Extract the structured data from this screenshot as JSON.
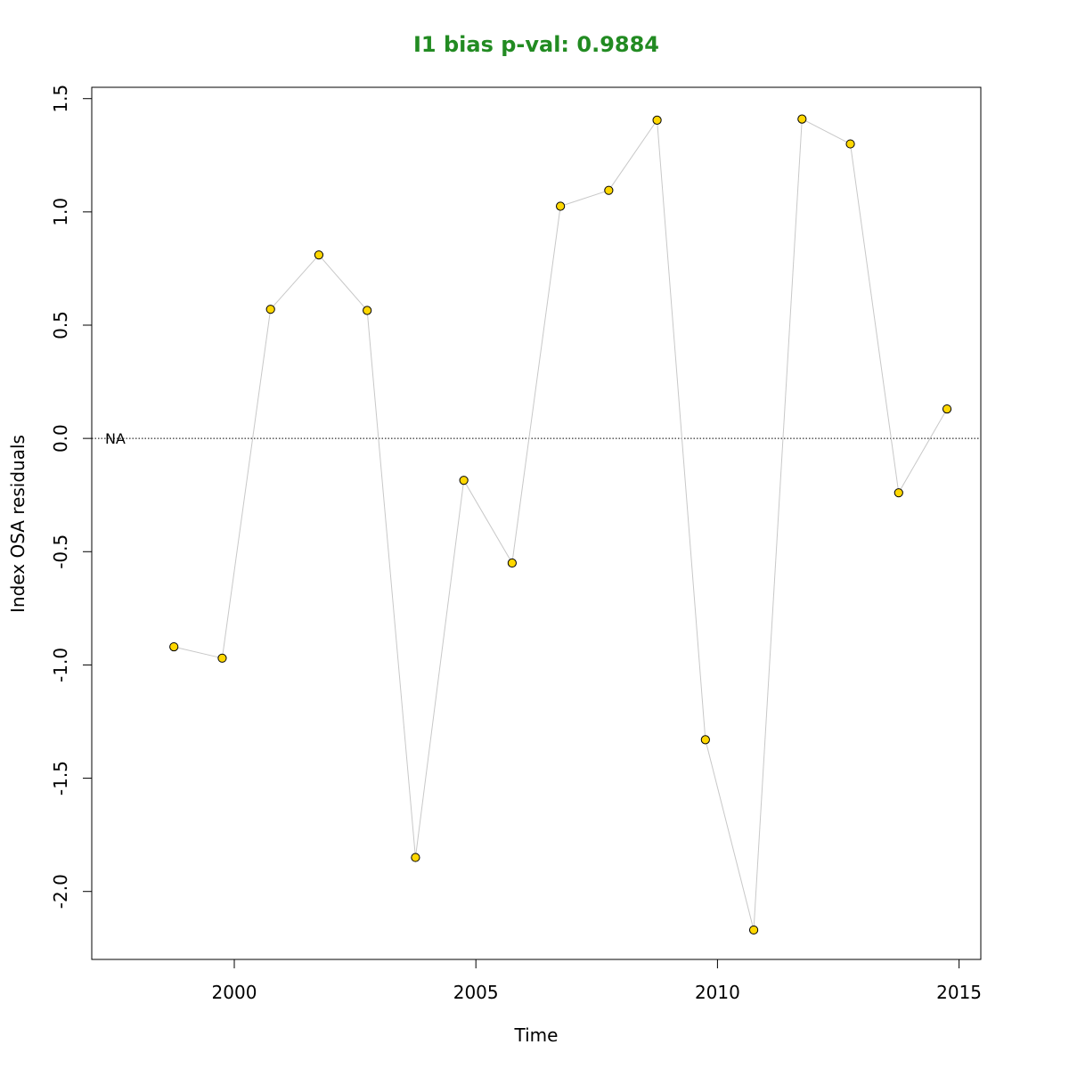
{
  "colors": {
    "title": "#228B22",
    "point_fill": "#FFD700",
    "point_stroke": "#000000",
    "line": "#C8C8C8",
    "frame": "#000000"
  },
  "chart_data": {
    "type": "line",
    "title": "I1 bias p-val: 0.9884",
    "xlabel": "Time",
    "ylabel": "Index OSA residuals",
    "xlim": [
      1997.05,
      2015.45
    ],
    "ylim": [
      -2.3,
      1.55
    ],
    "xticks": [
      2000,
      2005,
      2010,
      2015
    ],
    "xtick_labels": [
      "2000",
      "2005",
      "2010",
      "2015"
    ],
    "yticks": [
      -2.0,
      -1.5,
      -1.0,
      -0.5,
      0.0,
      0.5,
      1.0,
      1.5
    ],
    "ytick_labels": [
      "-2.0",
      "-1.5",
      "-1.0",
      "-0.5",
      "0.0",
      "0.5",
      "1.0",
      "1.5"
    ],
    "hline": {
      "y": 0.0,
      "style": "dotted"
    },
    "annotation": {
      "text": "NA",
      "x": 1997.5,
      "y": 0.0
    },
    "series": [
      {
        "x": [
          1998.75,
          1999.75,
          2000.75,
          2001.75,
          2002.75,
          2003.75,
          2004.75,
          2005.75,
          2006.75,
          2007.75,
          2008.75,
          2009.75,
          2010.75,
          2011.75,
          2012.75,
          2013.75,
          2014.75
        ],
        "y": [
          -0.92,
          -0.97,
          0.57,
          0.81,
          0.565,
          -1.85,
          -0.185,
          -0.55,
          1.025,
          1.095,
          1.405,
          -1.33,
          -2.17,
          1.41,
          1.3,
          -0.24,
          0.13
        ]
      }
    ]
  }
}
